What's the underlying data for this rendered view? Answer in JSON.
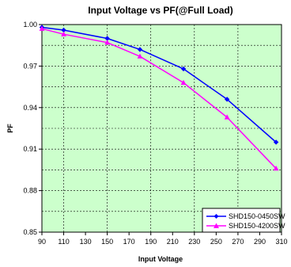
{
  "chart_data": {
    "type": "line",
    "title": "Input Voltage vs PF(@Full Load)",
    "xlabel": "Input Voltage",
    "ylabel": "PF",
    "xlim": [
      90,
      310
    ],
    "ylim": [
      0.85,
      1.0
    ],
    "x_ticks": [
      "90",
      "110",
      "130",
      "150",
      "170",
      "190",
      "210",
      "230",
      "250",
      "270",
      "290",
      "310"
    ],
    "y_ticks": [
      "0.85",
      "0.88",
      "0.91",
      "0.94",
      "0.97",
      "1.00"
    ],
    "grid": true,
    "plot_background": "#ccffcc",
    "legend_position": "bottom-right",
    "series": [
      {
        "name": "SHD150-0450SW",
        "color": "#0000ff",
        "marker": "diamond",
        "x": [
          90,
          110,
          150,
          180,
          220,
          260,
          305
        ],
        "y": [
          0.998,
          0.996,
          0.99,
          0.982,
          0.968,
          0.946,
          0.915
        ]
      },
      {
        "name": "SHD150-4200SW",
        "color": "#ff00ff",
        "marker": "triangle",
        "x": [
          90,
          110,
          150,
          180,
          220,
          260,
          305
        ],
        "y": [
          0.997,
          0.993,
          0.987,
          0.977,
          0.958,
          0.933,
          0.896
        ]
      }
    ]
  }
}
